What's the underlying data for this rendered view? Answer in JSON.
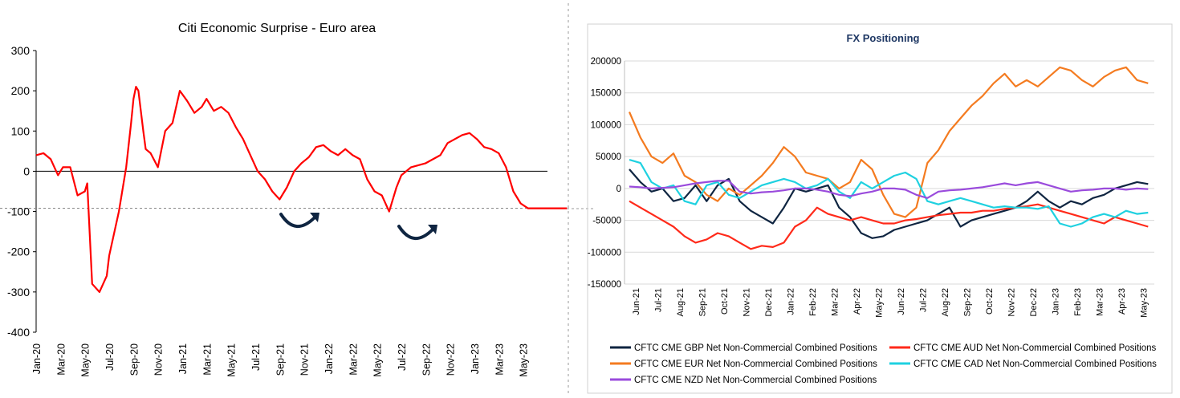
{
  "chart_data": [
    {
      "type": "line",
      "title": "Citi Economic Surprise - Euro area",
      "xlabel": "",
      "ylabel": "",
      "ylim": [
        -400,
        300
      ],
      "yticks": [
        300,
        200,
        100,
        0,
        -100,
        -200,
        -300,
        -400
      ],
      "ytick_labels": [
        "300",
        "200",
        "100",
        "0",
        "-100",
        "-200",
        "-300",
        "-400"
      ],
      "xtick_labels": [
        "Jan-20",
        "Mar-20",
        "May-20",
        "Jul-20",
        "Sep-20",
        "Nov-20",
        "Jan-21",
        "Mar-21",
        "May-21",
        "Jul-21",
        "Sep-21",
        "Nov-21",
        "Jan-22",
        "Mar-22",
        "May-22",
        "Jul-22",
        "Sep-22",
        "Nov-22",
        "Jan-23",
        "Mar-23",
        "May-23"
      ],
      "reference_line": -92,
      "annotations": [
        "upturn-arrow-1",
        "upturn-arrow-2"
      ],
      "color": "#ff0000",
      "series": [
        {
          "name": "Citi Economic Surprise - Euro area",
          "x": [
            0,
            0.3,
            0.6,
            0.9,
            1.1,
            1.4,
            1.7,
            2.0,
            2.1,
            2.3,
            2.6,
            2.9,
            3.0,
            3.4,
            3.7,
            3.9,
            4.0,
            4.1,
            4.2,
            4.4,
            4.5,
            4.7,
            5.0,
            5.3,
            5.6,
            5.9,
            6.2,
            6.5,
            6.8,
            7.0,
            7.3,
            7.6,
            7.9,
            8.2,
            8.5,
            8.8,
            9.1,
            9.4,
            9.7,
            10.0,
            10.3,
            10.6,
            10.9,
            11.2,
            11.5,
            11.8,
            12.1,
            12.4,
            12.7,
            13.0,
            13.3,
            13.6,
            13.9,
            14.2,
            14.5,
            14.8,
            15.0,
            15.2,
            15.4,
            15.7,
            16.0,
            16.3,
            16.6,
            16.9,
            17.2,
            17.5,
            17.8,
            18.1,
            18.4,
            18.7,
            19.0,
            19.3,
            19.6,
            19.9,
            20.2,
            20.5,
            20.8,
            21.1,
            21.4,
            21.6,
            21.8
          ],
          "values": [
            40,
            45,
            30,
            -10,
            10,
            10,
            -60,
            -50,
            -30,
            -280,
            -300,
            -260,
            -210,
            -100,
            10,
            120,
            180,
            210,
            200,
            100,
            55,
            45,
            10,
            100,
            120,
            200,
            175,
            145,
            160,
            180,
            150,
            160,
            145,
            110,
            80,
            40,
            0,
            -20,
            -50,
            -70,
            -40,
            0,
            20,
            35,
            60,
            65,
            50,
            40,
            55,
            40,
            30,
            -20,
            -50,
            -60,
            -100,
            -40,
            -10,
            0,
            10,
            15,
            20,
            30,
            40,
            70,
            80,
            90,
            95,
            80,
            60,
            55,
            45,
            10,
            -50,
            -80,
            -92,
            -92,
            -92,
            -92,
            -92,
            -92,
            -92
          ]
        }
      ]
    },
    {
      "type": "line",
      "title": "FX Positioning",
      "xlabel": "",
      "ylabel": "",
      "ylim": [
        -150000,
        200000
      ],
      "yticks": [
        200000,
        150000,
        100000,
        50000,
        0,
        -50000,
        -100000,
        -150000
      ],
      "ytick_labels": [
        "200000",
        "150000",
        "100000",
        "50000",
        "0",
        "-50000",
        "-100000",
        "-150000"
      ],
      "xtick_labels": [
        "Jun-21",
        "Jul-21",
        "Aug-21",
        "Sep-21",
        "Oct-21",
        "Nov-21",
        "Dec-21",
        "Jan-22",
        "Feb-22",
        "Mar-22",
        "Apr-22",
        "May-22",
        "Jun-22",
        "Jul-22",
        "Aug-22",
        "Sep-22",
        "Oct-22",
        "Nov-22",
        "Dec-22",
        "Jan-23",
        "Feb-23",
        "Mar-23",
        "Apr-23",
        "May-23"
      ],
      "x": [
        0,
        0.5,
        1,
        1.5,
        2,
        2.5,
        3,
        3.5,
        4,
        4.5,
        5,
        5.5,
        6,
        6.5,
        7,
        7.5,
        8,
        8.5,
        9,
        9.5,
        10,
        10.5,
        11,
        11.5,
        12,
        12.5,
        13,
        13.5,
        14,
        14.5,
        15,
        15.5,
        16,
        16.5,
        17,
        17.5,
        18,
        18.5,
        19,
        19.5,
        20,
        20.5,
        21,
        21.5,
        22,
        22.5,
        23,
        23.5
      ],
      "series": [
        {
          "name": "CFTC CME GBP Net Non-Commercial Combined Positions",
          "color": "#0f2541",
          "values": [
            30000,
            10000,
            -5000,
            0,
            -20000,
            -15000,
            5000,
            -20000,
            5000,
            15000,
            -20000,
            -35000,
            -45000,
            -55000,
            -30000,
            0,
            -5000,
            0,
            5000,
            -30000,
            -45000,
            -70000,
            -78000,
            -75000,
            -65000,
            -60000,
            -55000,
            -50000,
            -40000,
            -30000,
            -60000,
            -50000,
            -45000,
            -40000,
            -35000,
            -30000,
            -20000,
            -5000,
            -20000,
            -30000,
            -20000,
            -25000,
            -15000,
            -10000,
            0,
            5000,
            10000,
            7000
          ]
        },
        {
          "name": "CFTC CME AUD Net Non-Commercial Combined Positions",
          "color": "#ff2a1a",
          "values": [
            -20000,
            -30000,
            -40000,
            -50000,
            -60000,
            -75000,
            -85000,
            -80000,
            -70000,
            -75000,
            -85000,
            -95000,
            -90000,
            -92000,
            -85000,
            -60000,
            -50000,
            -30000,
            -40000,
            -45000,
            -50000,
            -45000,
            -50000,
            -55000,
            -55000,
            -50000,
            -48000,
            -45000,
            -42000,
            -40000,
            -38000,
            -38000,
            -35000,
            -35000,
            -32000,
            -30000,
            -28000,
            -25000,
            -30000,
            -35000,
            -40000,
            -45000,
            -50000,
            -55000,
            -45000,
            -50000,
            -55000,
            -60000
          ]
        },
        {
          "name": "CFTC CME EUR Net Non-Commercial Combined Positions",
          "color": "#f47b20",
          "values": [
            120000,
            80000,
            50000,
            40000,
            55000,
            20000,
            10000,
            -10000,
            -20000,
            0,
            -10000,
            5000,
            20000,
            40000,
            65000,
            50000,
            25000,
            20000,
            15000,
            0,
            10000,
            45000,
            30000,
            -10000,
            -40000,
            -45000,
            -30000,
            40000,
            60000,
            90000,
            110000,
            130000,
            145000,
            165000,
            180000,
            160000,
            170000,
            160000,
            175000,
            190000,
            185000,
            170000,
            160000,
            175000,
            185000,
            190000,
            170000,
            165000
          ]
        },
        {
          "name": "CFTC CME CAD Net Non-Commercial Combined Positions",
          "color": "#1fd1e0",
          "values": [
            45000,
            40000,
            10000,
            0,
            5000,
            -20000,
            -25000,
            5000,
            10000,
            -10000,
            -15000,
            -5000,
            5000,
            10000,
            15000,
            10000,
            0,
            5000,
            15000,
            -5000,
            -15000,
            10000,
            0,
            10000,
            20000,
            25000,
            15000,
            -20000,
            -25000,
            -20000,
            -15000,
            -20000,
            -25000,
            -30000,
            -28000,
            -30000,
            -30000,
            -32000,
            -28000,
            -55000,
            -60000,
            -55000,
            -45000,
            -40000,
            -45000,
            -35000,
            -40000,
            -38000
          ]
        },
        {
          "name": "CFTC CME NZD Net Non-Commercial Combined Positions",
          "color": "#9a4bdc",
          "values": [
            3000,
            2000,
            0,
            1000,
            2000,
            5000,
            8000,
            10000,
            12000,
            12000,
            -5000,
            -8000,
            -6000,
            -5000,
            -3000,
            0,
            0,
            -2000,
            -5000,
            -10000,
            -12000,
            -8000,
            -5000,
            0,
            0,
            -2000,
            -10000,
            -15000,
            -5000,
            -3000,
            -2000,
            0,
            2000,
            5000,
            8000,
            5000,
            8000,
            10000,
            5000,
            0,
            -5000,
            -3000,
            -2000,
            0,
            0,
            -2000,
            0,
            -1000
          ]
        }
      ]
    }
  ]
}
